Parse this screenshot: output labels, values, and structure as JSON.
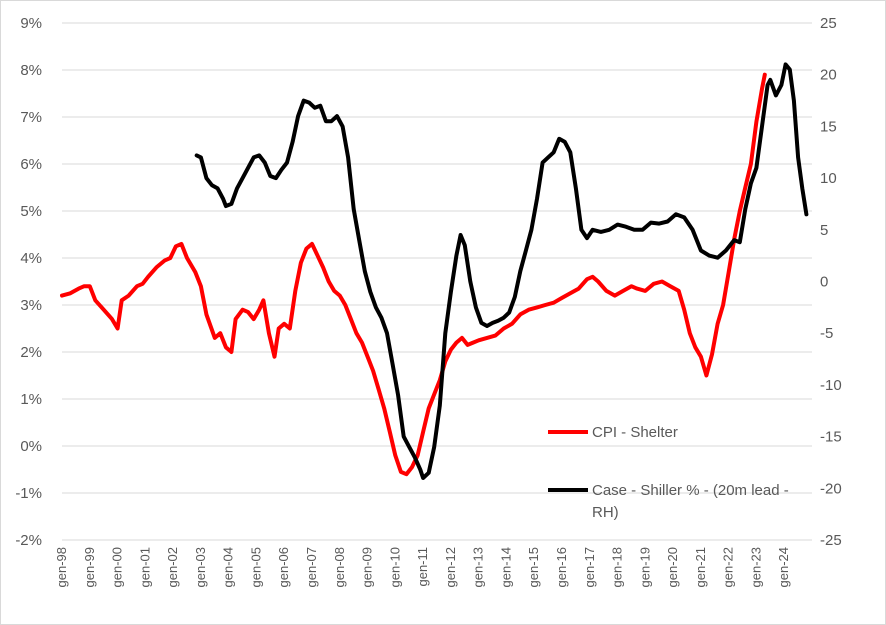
{
  "chart_data": {
    "type": "line",
    "grid": true,
    "left_axis": {
      "ylim": [
        -2,
        9
      ],
      "ticks": [
        -2,
        -1,
        0,
        1,
        2,
        3,
        4,
        5,
        6,
        7,
        8,
        9
      ],
      "tick_labels": [
        "-2%",
        "-1%",
        "0%",
        "1%",
        "2%",
        "3%",
        "4%",
        "5%",
        "6%",
        "7%",
        "8%",
        "9%"
      ]
    },
    "right_axis": {
      "ylim": [
        -25,
        25
      ],
      "ticks": [
        -25,
        -20,
        -15,
        -10,
        -5,
        0,
        5,
        10,
        15,
        20,
        25
      ],
      "tick_labels": [
        "-25",
        "-20",
        "-15",
        "-10",
        "-5",
        "0",
        "5",
        "10",
        "15",
        "20",
        "25"
      ]
    },
    "x_axis": {
      "xlim": [
        1998.0,
        2025.0
      ],
      "ticks": [
        1998,
        1999,
        2000,
        2001,
        2002,
        2003,
        2004,
        2005,
        2006,
        2007,
        2008,
        2009,
        2010,
        2011,
        2012,
        2013,
        2014,
        2015,
        2016,
        2017,
        2018,
        2019,
        2020,
        2021,
        2022,
        2023,
        2024
      ],
      "tick_labels": [
        "gen-98",
        "gen-99",
        "gen-00",
        "gen-01",
        "gen-02",
        "gen-03",
        "gen-04",
        "gen-05",
        "gen-06",
        "gen-07",
        "gen-08",
        "gen-09",
        "gen-10",
        "gen-11",
        "gen-12",
        "gen-13",
        "gen-14",
        "gen-15",
        "gen-16",
        "gen-17",
        "gen-18",
        "gen-19",
        "gen-20",
        "gen-21",
        "gen-22",
        "gen-23",
        "gen-24"
      ]
    },
    "legend": {
      "placement": "lower-right inside plot",
      "entries": [
        {
          "label": "CPI - Shelter",
          "series": 0
        },
        {
          "label": "Case - Shiller % - (20m lead - RH)",
          "label_lines": [
            "Case - Shiller % - (20m lead -",
            "RH)"
          ],
          "series": 1
        }
      ]
    },
    "series": [
      {
        "name": "CPI - Shelter",
        "axis": "left",
        "color": "#ff0000",
        "points": [
          [
            1998.0,
            3.2
          ],
          [
            1998.3,
            3.25
          ],
          [
            1998.6,
            3.35
          ],
          [
            1998.8,
            3.4
          ],
          [
            1999.0,
            3.4
          ],
          [
            1999.2,
            3.1
          ],
          [
            1999.5,
            2.9
          ],
          [
            1999.8,
            2.7
          ],
          [
            2000.0,
            2.5
          ],
          [
            2000.15,
            3.1
          ],
          [
            2000.4,
            3.2
          ],
          [
            2000.7,
            3.4
          ],
          [
            2000.9,
            3.45
          ],
          [
            2001.1,
            3.6
          ],
          [
            2001.4,
            3.8
          ],
          [
            2001.7,
            3.95
          ],
          [
            2001.9,
            4.0
          ],
          [
            2002.1,
            4.25
          ],
          [
            2002.3,
            4.3
          ],
          [
            2002.5,
            4.0
          ],
          [
            2002.8,
            3.7
          ],
          [
            2003.0,
            3.4
          ],
          [
            2003.2,
            2.8
          ],
          [
            2003.5,
            2.3
          ],
          [
            2003.7,
            2.4
          ],
          [
            2003.9,
            2.1
          ],
          [
            2004.1,
            2.0
          ],
          [
            2004.25,
            2.7
          ],
          [
            2004.5,
            2.9
          ],
          [
            2004.7,
            2.85
          ],
          [
            2004.9,
            2.7
          ],
          [
            2005.1,
            2.9
          ],
          [
            2005.25,
            3.1
          ],
          [
            2005.45,
            2.4
          ],
          [
            2005.65,
            1.9
          ],
          [
            2005.8,
            2.5
          ],
          [
            2006.0,
            2.6
          ],
          [
            2006.2,
            2.5
          ],
          [
            2006.4,
            3.3
          ],
          [
            2006.6,
            3.9
          ],
          [
            2006.8,
            4.2
          ],
          [
            2007.0,
            4.3
          ],
          [
            2007.2,
            4.05
          ],
          [
            2007.4,
            3.8
          ],
          [
            2007.6,
            3.5
          ],
          [
            2007.8,
            3.3
          ],
          [
            2008.0,
            3.2
          ],
          [
            2008.2,
            3.0
          ],
          [
            2008.4,
            2.7
          ],
          [
            2008.6,
            2.4
          ],
          [
            2008.8,
            2.2
          ],
          [
            2009.0,
            1.9
          ],
          [
            2009.2,
            1.6
          ],
          [
            2009.4,
            1.2
          ],
          [
            2009.6,
            0.8
          ],
          [
            2009.8,
            0.3
          ],
          [
            2010.0,
            -0.2
          ],
          [
            2010.2,
            -0.55
          ],
          [
            2010.4,
            -0.6
          ],
          [
            2010.6,
            -0.45
          ],
          [
            2010.8,
            -0.2
          ],
          [
            2011.0,
            0.3
          ],
          [
            2011.2,
            0.8
          ],
          [
            2011.4,
            1.1
          ],
          [
            2011.6,
            1.4
          ],
          [
            2011.8,
            1.8
          ],
          [
            2012.0,
            2.05
          ],
          [
            2012.2,
            2.2
          ],
          [
            2012.4,
            2.3
          ],
          [
            2012.6,
            2.15
          ],
          [
            2012.8,
            2.2
          ],
          [
            2013.0,
            2.25
          ],
          [
            2013.3,
            2.3
          ],
          [
            2013.6,
            2.35
          ],
          [
            2013.9,
            2.5
          ],
          [
            2014.2,
            2.6
          ],
          [
            2014.5,
            2.8
          ],
          [
            2014.8,
            2.9
          ],
          [
            2015.1,
            2.95
          ],
          [
            2015.4,
            3.0
          ],
          [
            2015.7,
            3.05
          ],
          [
            2016.0,
            3.15
          ],
          [
            2016.3,
            3.25
          ],
          [
            2016.6,
            3.35
          ],
          [
            2016.9,
            3.55
          ],
          [
            2017.1,
            3.6
          ],
          [
            2017.3,
            3.5
          ],
          [
            2017.6,
            3.3
          ],
          [
            2017.9,
            3.2
          ],
          [
            2018.2,
            3.3
          ],
          [
            2018.5,
            3.4
          ],
          [
            2018.7,
            3.35
          ],
          [
            2019.0,
            3.3
          ],
          [
            2019.3,
            3.45
          ],
          [
            2019.6,
            3.5
          ],
          [
            2019.9,
            3.4
          ],
          [
            2020.2,
            3.3
          ],
          [
            2020.4,
            2.9
          ],
          [
            2020.6,
            2.4
          ],
          [
            2020.8,
            2.1
          ],
          [
            2021.0,
            1.9
          ],
          [
            2021.2,
            1.5
          ],
          [
            2021.4,
            1.95
          ],
          [
            2021.6,
            2.6
          ],
          [
            2021.8,
            3.0
          ],
          [
            2022.0,
            3.7
          ],
          [
            2022.2,
            4.4
          ],
          [
            2022.4,
            5.0
          ],
          [
            2022.6,
            5.5
          ],
          [
            2022.8,
            6.0
          ],
          [
            2023.0,
            6.9
          ],
          [
            2023.2,
            7.6
          ],
          [
            2023.3,
            7.9
          ]
        ]
      },
      {
        "name": "Case - Shiller % - (20m lead - RH)",
        "axis": "right",
        "color": "#000000",
        "points": [
          [
            2002.85,
            12.2
          ],
          [
            2003.0,
            12.0
          ],
          [
            2003.2,
            10.0
          ],
          [
            2003.4,
            9.3
          ],
          [
            2003.6,
            9.0
          ],
          [
            2003.8,
            8.0
          ],
          [
            2003.9,
            7.3
          ],
          [
            2004.1,
            7.5
          ],
          [
            2004.3,
            9.0
          ],
          [
            2004.5,
            10.0
          ],
          [
            2004.7,
            11.0
          ],
          [
            2004.9,
            12.0
          ],
          [
            2005.1,
            12.2
          ],
          [
            2005.3,
            11.5
          ],
          [
            2005.5,
            10.2
          ],
          [
            2005.7,
            10.0
          ],
          [
            2005.9,
            10.8
          ],
          [
            2006.1,
            11.5
          ],
          [
            2006.3,
            13.5
          ],
          [
            2006.5,
            16.0
          ],
          [
            2006.7,
            17.5
          ],
          [
            2006.9,
            17.3
          ],
          [
            2007.1,
            16.8
          ],
          [
            2007.3,
            17.0
          ],
          [
            2007.5,
            15.5
          ],
          [
            2007.7,
            15.5
          ],
          [
            2007.9,
            16.0
          ],
          [
            2008.1,
            15.0
          ],
          [
            2008.3,
            12.0
          ],
          [
            2008.5,
            7.0
          ],
          [
            2008.7,
            4.0
          ],
          [
            2008.9,
            1.0
          ],
          [
            2009.1,
            -1.0
          ],
          [
            2009.3,
            -2.5
          ],
          [
            2009.5,
            -3.5
          ],
          [
            2009.7,
            -5.0
          ],
          [
            2009.9,
            -8.0
          ],
          [
            2010.1,
            -11.0
          ],
          [
            2010.3,
            -15.0
          ],
          [
            2010.5,
            -16.0
          ],
          [
            2010.7,
            -17.0
          ],
          [
            2010.9,
            -18.2
          ],
          [
            2011.0,
            -19.0
          ],
          [
            2011.2,
            -18.5
          ],
          [
            2011.4,
            -16.0
          ],
          [
            2011.6,
            -12.0
          ],
          [
            2011.8,
            -5.0
          ],
          [
            2012.0,
            -1.0
          ],
          [
            2012.2,
            2.5
          ],
          [
            2012.35,
            4.5
          ],
          [
            2012.5,
            3.5
          ],
          [
            2012.7,
            0.0
          ],
          [
            2012.9,
            -2.5
          ],
          [
            2013.1,
            -4.0
          ],
          [
            2013.3,
            -4.3
          ],
          [
            2013.5,
            -4.0
          ],
          [
            2013.7,
            -3.8
          ],
          [
            2013.9,
            -3.5
          ],
          [
            2014.1,
            -3.0
          ],
          [
            2014.3,
            -1.5
          ],
          [
            2014.5,
            1.0
          ],
          [
            2014.7,
            3.0
          ],
          [
            2014.9,
            5.0
          ],
          [
            2015.1,
            8.0
          ],
          [
            2015.3,
            11.5
          ],
          [
            2015.5,
            12.0
          ],
          [
            2015.7,
            12.5
          ],
          [
            2015.9,
            13.8
          ],
          [
            2016.1,
            13.5
          ],
          [
            2016.3,
            12.5
          ],
          [
            2016.5,
            9.0
          ],
          [
            2016.7,
            5.0
          ],
          [
            2016.9,
            4.2
          ],
          [
            2017.1,
            5.0
          ],
          [
            2017.4,
            4.8
          ],
          [
            2017.7,
            5.0
          ],
          [
            2018.0,
            5.5
          ],
          [
            2018.3,
            5.3
          ],
          [
            2018.6,
            5.0
          ],
          [
            2018.9,
            5.0
          ],
          [
            2019.2,
            5.7
          ],
          [
            2019.5,
            5.6
          ],
          [
            2019.8,
            5.8
          ],
          [
            2020.1,
            6.5
          ],
          [
            2020.4,
            6.2
          ],
          [
            2020.7,
            5.0
          ],
          [
            2021.0,
            3.0
          ],
          [
            2021.3,
            2.5
          ],
          [
            2021.6,
            2.3
          ],
          [
            2021.9,
            3.0
          ],
          [
            2022.2,
            4.0
          ],
          [
            2022.4,
            3.8
          ],
          [
            2022.6,
            7.0
          ],
          [
            2022.8,
            9.5
          ],
          [
            2023.0,
            11.0
          ],
          [
            2023.2,
            15.0
          ],
          [
            2023.4,
            19.0
          ],
          [
            2023.5,
            19.5
          ],
          [
            2023.7,
            18.0
          ],
          [
            2023.9,
            19.0
          ],
          [
            2024.05,
            21.0
          ],
          [
            2024.2,
            20.5
          ],
          [
            2024.35,
            17.5
          ],
          [
            2024.5,
            12.0
          ],
          [
            2024.65,
            9.0
          ],
          [
            2024.8,
            6.5
          ]
        ]
      }
    ]
  }
}
